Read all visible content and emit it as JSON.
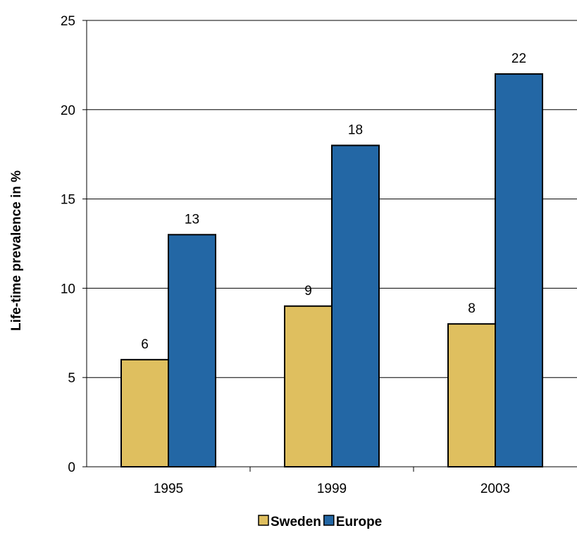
{
  "chart_data": {
    "type": "bar",
    "categories": [
      "1995",
      "1999",
      "2003"
    ],
    "series": [
      {
        "name": "Sweden",
        "values": [
          6,
          9,
          8
        ],
        "color": "#DFBF5F"
      },
      {
        "name": "Europe",
        "values": [
          13,
          18,
          22
        ],
        "color": "#2367A5"
      }
    ],
    "title": "",
    "xlabel": "",
    "ylabel": "Life-time prevalence in %",
    "ylim": [
      0,
      25
    ],
    "yticks": [
      0,
      5,
      10,
      15,
      20,
      25
    ],
    "grid": true,
    "legend_position": "bottom",
    "data_labels": true
  }
}
